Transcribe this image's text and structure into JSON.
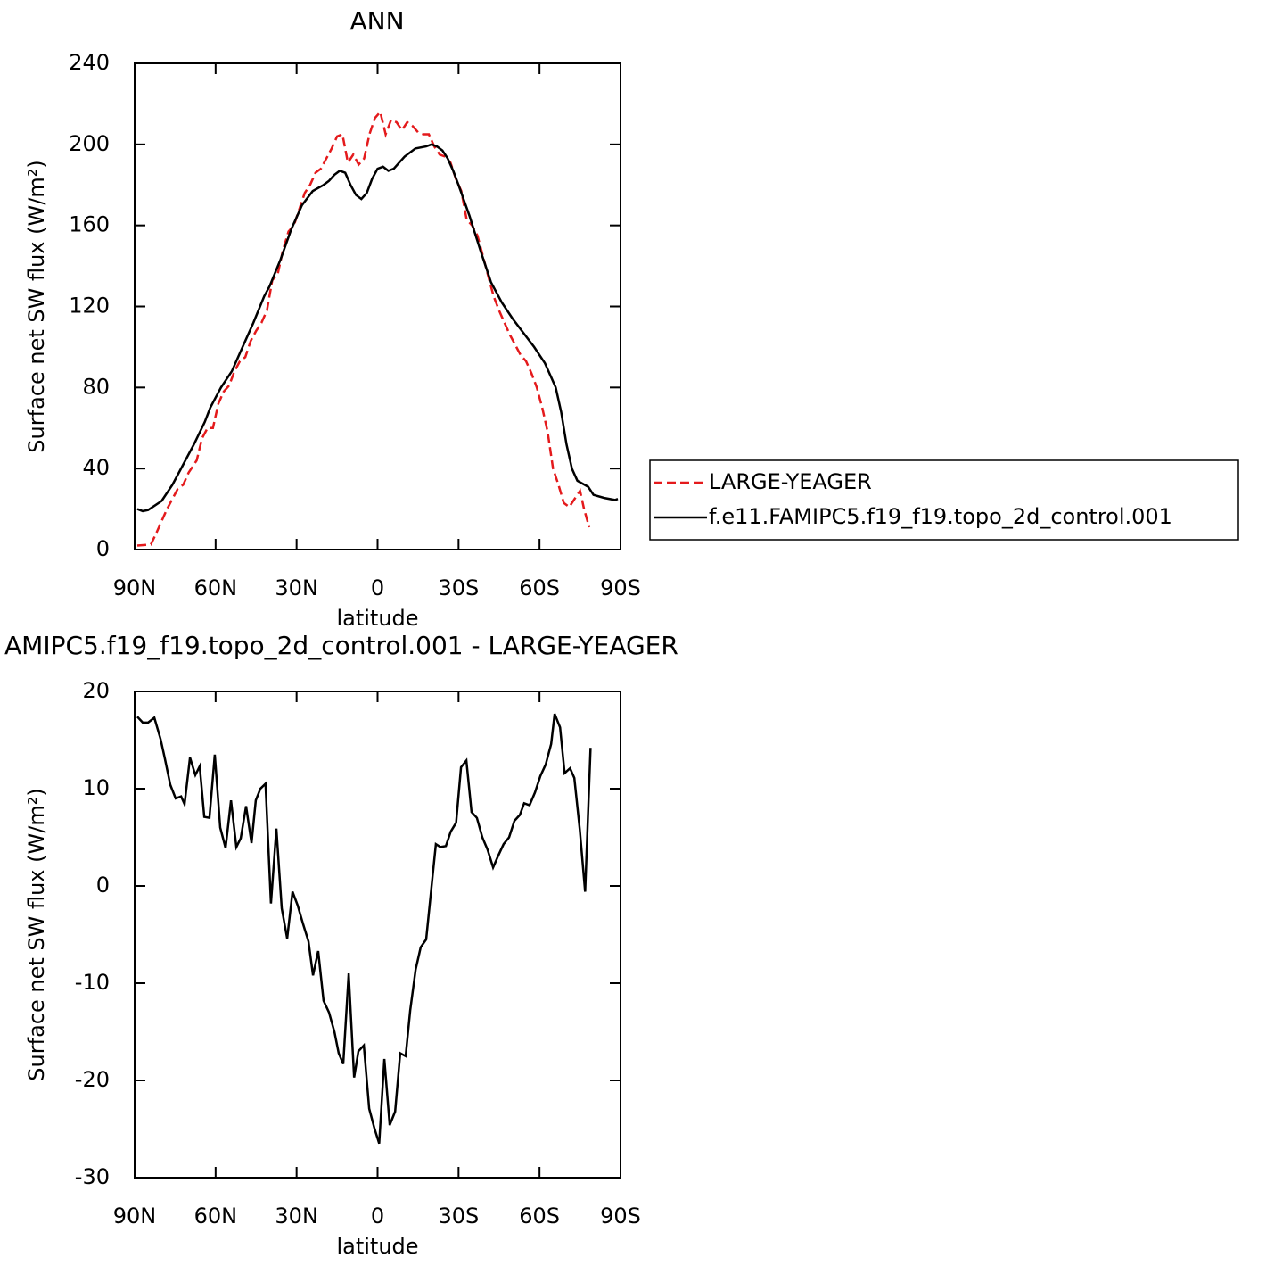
{
  "chart_data": [
    {
      "type": "line",
      "title": "ANN",
      "x_label": "latitude",
      "y_label": "Surface net SW flux (W/m²)",
      "xlim": [
        90,
        -90
      ],
      "xticks": [
        {
          "value": 90,
          "label": "90N"
        },
        {
          "value": 60,
          "label": "60N"
        },
        {
          "value": 30,
          "label": "30N"
        },
        0,
        {
          "value": -30,
          "label": "30S"
        },
        {
          "value": -60,
          "label": "60S"
        },
        {
          "value": -90,
          "label": "90S"
        }
      ],
      "ylim": [
        0,
        240
      ],
      "yticks": [
        0,
        40,
        80,
        120,
        160,
        200,
        240
      ],
      "grid": false,
      "legend": "right",
      "series": [
        {
          "name": "LARGE-YEAGER",
          "color": "#e41a1c",
          "dash": "dashed",
          "x": [
            89,
            84,
            82,
            78,
            74,
            72,
            70,
            67,
            65,
            63,
            61,
            59,
            57,
            55,
            53,
            51,
            49,
            47,
            45,
            43,
            41,
            39,
            37,
            35,
            33,
            31,
            29,
            27,
            25,
            23,
            21,
            19,
            17,
            15,
            13,
            11,
            9,
            7,
            5,
            3,
            1,
            -1,
            -3,
            -5,
            -7,
            -9,
            -11,
            -13,
            -15,
            -17,
            -19,
            -21,
            -23,
            -25,
            -27,
            -29,
            -31,
            -33,
            -35,
            -37,
            -39,
            -41,
            -43,
            -45,
            -47,
            -49,
            -51,
            -53,
            -55,
            -57,
            -59,
            -61,
            -63,
            -65,
            -67,
            -69,
            -71,
            -73,
            -75,
            -76.5,
            -78.4
          ],
          "values": [
            2,
            2.5,
            8,
            20,
            30,
            32,
            38,
            44,
            55,
            60,
            60,
            72,
            78,
            81,
            88,
            93,
            95,
            103,
            108,
            112,
            118,
            133,
            136,
            148,
            157,
            160,
            168,
            176,
            180,
            186,
            188,
            193,
            198,
            204,
            205,
            191,
            195,
            190,
            193,
            205,
            213,
            216,
            205,
            212,
            211,
            207,
            211,
            209,
            206,
            205,
            205,
            199,
            195,
            194,
            191,
            183,
            177,
            163,
            160,
            155,
            145,
            135,
            125,
            118,
            112,
            106,
            101,
            96,
            93,
            87,
            80,
            70,
            58,
            40,
            32,
            23,
            21,
            25,
            29,
            20,
            11
          ]
        },
        {
          "name": "f.e11.FAMIPC5.f19_f19.topo_2d_control.001",
          "color": "#000000",
          "dash": "solid",
          "x": [
            89,
            87,
            85,
            80,
            76,
            72,
            68,
            64,
            62,
            60,
            58,
            54,
            50,
            46,
            42,
            40,
            36,
            32,
            28,
            24,
            20,
            18,
            16,
            14,
            12,
            10,
            8,
            6,
            4,
            2,
            0,
            -2,
            -4,
            -6,
            -8,
            -10,
            -14,
            -18,
            -20,
            -22,
            -24,
            -26,
            -28,
            -30,
            -34,
            -38,
            -42,
            -46,
            -50,
            -54,
            -58,
            -62,
            -64,
            -66,
            -68,
            -70,
            -72,
            -74,
            -78,
            -80,
            -84,
            -88,
            -89
          ],
          "values": [
            20,
            19,
            19.5,
            24,
            32,
            42,
            52,
            63,
            70,
            75,
            80,
            88,
            100,
            112,
            125,
            130,
            143,
            158,
            170,
            177,
            180,
            182,
            185,
            187,
            186,
            180,
            175,
            173,
            176,
            183,
            188,
            189,
            187,
            188,
            191,
            194,
            198,
            199,
            200,
            199,
            197,
            193,
            187,
            180,
            165,
            148,
            132,
            122,
            114,
            107,
            100,
            92,
            86,
            80,
            68,
            52,
            40,
            34,
            31,
            27,
            25.5,
            24.5,
            25
          ]
        }
      ]
    },
    {
      "type": "line",
      "title": "AMIPC5.f19_f19.topo_2d_control.001 - LARGE-YEAGER",
      "x_label": "latitude",
      "y_label": "Surface net SW flux (W/m²)",
      "xlim": [
        90,
        -90
      ],
      "xticks": [
        {
          "value": 90,
          "label": "90N"
        },
        {
          "value": 60,
          "label": "60N"
        },
        {
          "value": 30,
          "label": "30N"
        },
        0,
        {
          "value": -30,
          "label": "30S"
        },
        {
          "value": -60,
          "label": "60S"
        },
        {
          "value": -90,
          "label": "90S"
        }
      ],
      "ylim": [
        -30,
        20
      ],
      "yticks": [
        -30,
        -20,
        -10,
        0,
        10,
        20
      ],
      "grid": false,
      "series": [
        {
          "color": "#000000",
          "dash": "solid",
          "x": [
            89,
            87,
            85,
            82.7,
            80.4,
            78.8,
            76.8,
            74.8,
            72.8,
            71.5,
            69.5,
            67.5,
            65.9,
            64.2,
            62.3,
            60.3,
            58.3,
            56.3,
            54.3,
            52.3,
            50.7,
            48.7,
            46.7,
            45.1,
            43.4,
            41.5,
            39.5,
            37.5,
            35.5,
            33.5,
            31.5,
            29.6,
            27.6,
            25.6,
            23.9,
            22,
            20,
            18,
            16,
            14.4,
            12.7,
            10.7,
            8.7,
            7.1,
            5.1,
            3.1,
            1.2,
            -0.6,
            -2.5,
            -4.5,
            -6.5,
            -8.4,
            -10.4,
            -12.1,
            -14.1,
            -16,
            -18,
            -20,
            -21.6,
            -23.3,
            -25.3,
            -27.1,
            -29.1,
            -30.9,
            -32.9,
            -34.8,
            -36.8,
            -38.8,
            -40.8,
            -42.8,
            -44.7,
            -46.7,
            -48.7,
            -50.7,
            -52.7,
            -54.3,
            -56.3,
            -58.3,
            -60.3,
            -62.3,
            -64.3,
            -65.6,
            -67.6,
            -69.3,
            -71.3,
            -72.9,
            -74.9,
            -76.9,
            -78.9
          ],
          "values": [
            17.4,
            16.8,
            16.8,
            17.3,
            15.1,
            13.1,
            10.4,
            9,
            9.2,
            8.4,
            13.2,
            11.4,
            12.3,
            7.1,
            7,
            13.5,
            6,
            3.9,
            8.8,
            4,
            4.9,
            8.2,
            4.4,
            8.8,
            10,
            10.5,
            -1.8,
            5.9,
            -2.3,
            -5.4,
            -0.6,
            -2,
            -3.9,
            -5.7,
            -9.2,
            -6.7,
            -11.8,
            -13,
            -15,
            -17.2,
            -18.3,
            -9,
            -19.7,
            -17,
            -16.4,
            -22.9,
            -24.9,
            -26.5,
            -17.8,
            -24.6,
            -23.2,
            -17.2,
            -17.5,
            -12.8,
            -8.6,
            -6.3,
            -5.5,
            0,
            4.3,
            4,
            4.1,
            5.6,
            6.5,
            12.2,
            12.9,
            7.6,
            7,
            5,
            3.7,
            1.9,
            3.1,
            4.3,
            5,
            6.7,
            7.3,
            8.5,
            8.3,
            9.6,
            11.3,
            12.5,
            14.6,
            17.7,
            16.3,
            11.6,
            12.1,
            11.1,
            5.8,
            -0.6,
            14.2
          ]
        }
      ]
    }
  ]
}
